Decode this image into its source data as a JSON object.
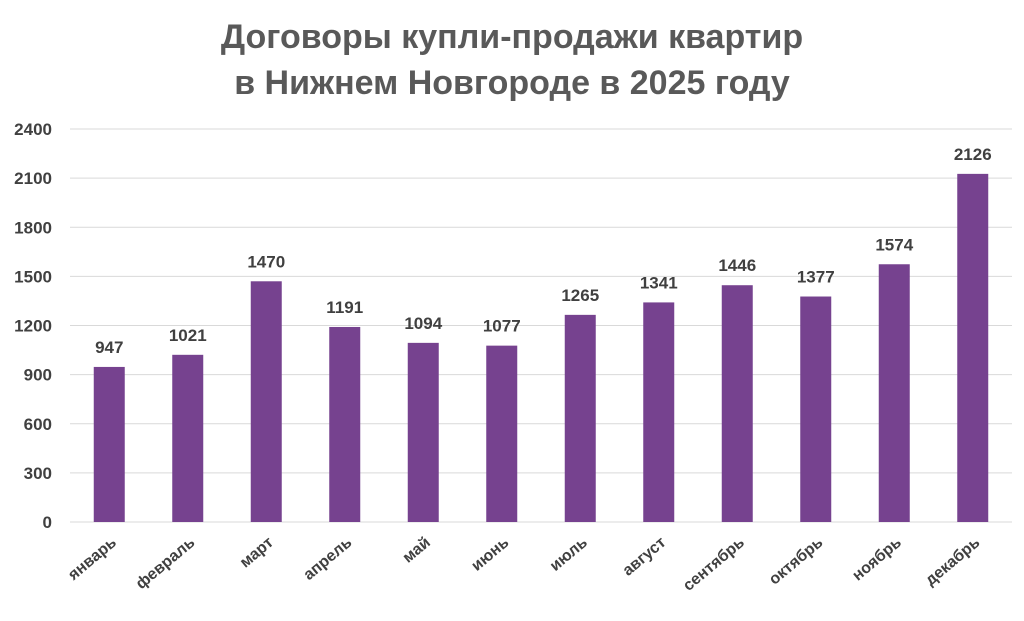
{
  "chart_data": {
    "type": "bar",
    "title_lines": [
      "Договоры купли-продажи квартир",
      "в Нижнем Новгороде в 2025 году"
    ],
    "categories": [
      "январь",
      "февраль",
      "март",
      "апрель",
      "май",
      "июнь",
      "июль",
      "август",
      "сентябрь",
      "октябрь",
      "ноябрь",
      "декабрь"
    ],
    "values": [
      947,
      1021,
      1470,
      1191,
      1094,
      1077,
      1265,
      1341,
      1446,
      1377,
      1574,
      2126
    ],
    "ylim": [
      0,
      2400
    ],
    "yticks": [
      "0",
      "300",
      "600",
      "900",
      "1200",
      "1500",
      "1800",
      "2100",
      "2400"
    ],
    "grid": true,
    "bar_color": "#76428f",
    "grid_color": "#d9d9d9",
    "text_color": "#404040"
  }
}
